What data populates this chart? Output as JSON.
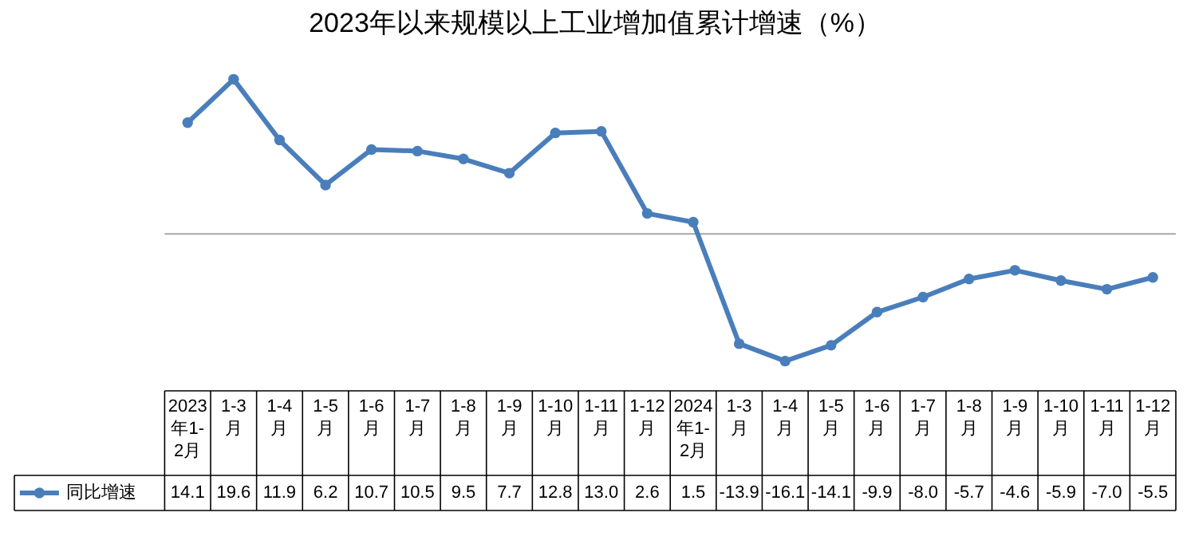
{
  "chart_data": {
    "type": "line",
    "title": "2023年以来规模以上工业增加值累计增速（%）",
    "categories": [
      "2023年1-2月",
      "1-3月",
      "1-4月",
      "1-5月",
      "1-6月",
      "1-7月",
      "1-8月",
      "1-9月",
      "1-10月",
      "1-11月",
      "1-12月",
      "2024年1-2月",
      "1-3月",
      "1-4月",
      "1-5月",
      "1-6月",
      "1-7月",
      "1-8月",
      "1-9月",
      "1-10月",
      "1-11月",
      "1-12月"
    ],
    "series": [
      {
        "name": "同比增速",
        "color": "#4a7ebb",
        "values": [
          14.1,
          19.6,
          11.9,
          6.2,
          10.7,
          10.5,
          9.5,
          7.7,
          12.8,
          13.0,
          2.6,
          1.5,
          -13.9,
          -16.1,
          -14.1,
          -9.9,
          -8.0,
          -5.7,
          -4.6,
          -5.9,
          -7.0,
          -5.5
        ],
        "value_labels": [
          "14.1",
          "19.6",
          "11.9",
          "6.2",
          "10.7",
          "10.5",
          "9.5",
          "7.7",
          "12.8",
          "13.0",
          "2.6",
          "1.5",
          "-13.9",
          "-16.1",
          "-14.1",
          "-9.9",
          "-8.0",
          "-5.7",
          "-4.6",
          "-5.9",
          "-7.0",
          "-5.5"
        ]
      }
    ],
    "legend": "bottom left",
    "marker": "circle",
    "line_style": "solid"
  }
}
